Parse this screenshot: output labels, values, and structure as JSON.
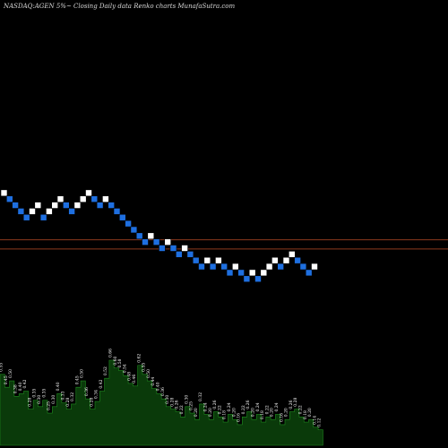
{
  "chart_data": {
    "type": "renko",
    "title": "NASDAQ:AGEN 5%~ Closing Daily data Renko charts MunafaSutra.com",
    "colors": {
      "background": "#000000",
      "up_brick": "#ffffff",
      "down_brick": "#1e6fe0",
      "reference_line": "#8b3a1e",
      "volume_bar": "#0a3a0a",
      "volume_outline": "#1e8a1e"
    },
    "reference_levels": [
      1,
      -0.5
    ],
    "bricks": [
      {
        "level": 9,
        "dir": "up"
      },
      {
        "level": 8,
        "dir": "down"
      },
      {
        "level": 7,
        "dir": "down"
      },
      {
        "level": 6,
        "dir": "down"
      },
      {
        "level": 5,
        "dir": "down"
      },
      {
        "level": 6,
        "dir": "up"
      },
      {
        "level": 7,
        "dir": "up"
      },
      {
        "level": 5,
        "dir": "down"
      },
      {
        "level": 6,
        "dir": "up"
      },
      {
        "level": 7,
        "dir": "up"
      },
      {
        "level": 8,
        "dir": "up"
      },
      {
        "level": 7,
        "dir": "down"
      },
      {
        "level": 6,
        "dir": "down"
      },
      {
        "level": 7,
        "dir": "up"
      },
      {
        "level": 8,
        "dir": "up"
      },
      {
        "level": 9,
        "dir": "up"
      },
      {
        "level": 8,
        "dir": "down"
      },
      {
        "level": 7,
        "dir": "down"
      },
      {
        "level": 8,
        "dir": "up"
      },
      {
        "level": 7,
        "dir": "down"
      },
      {
        "level": 6,
        "dir": "down"
      },
      {
        "level": 5,
        "dir": "down"
      },
      {
        "level": 4,
        "dir": "down"
      },
      {
        "level": 3,
        "dir": "down"
      },
      {
        "level": 2,
        "dir": "down"
      },
      {
        "level": 1,
        "dir": "down"
      },
      {
        "level": 2,
        "dir": "up"
      },
      {
        "level": 1,
        "dir": "down"
      },
      {
        "level": 0,
        "dir": "down"
      },
      {
        "level": 1,
        "dir": "up"
      },
      {
        "level": 0,
        "dir": "down"
      },
      {
        "level": -1,
        "dir": "down"
      },
      {
        "level": 0,
        "dir": "up"
      },
      {
        "level": -1,
        "dir": "down"
      },
      {
        "level": -2,
        "dir": "down"
      },
      {
        "level": -3,
        "dir": "down"
      },
      {
        "level": -2,
        "dir": "up"
      },
      {
        "level": -3,
        "dir": "down"
      },
      {
        "level": -2,
        "dir": "up"
      },
      {
        "level": -3,
        "dir": "down"
      },
      {
        "level": -4,
        "dir": "down"
      },
      {
        "level": -3,
        "dir": "up"
      },
      {
        "level": -4,
        "dir": "down"
      },
      {
        "level": -5,
        "dir": "down"
      },
      {
        "level": -4,
        "dir": "up"
      },
      {
        "level": -5,
        "dir": "down"
      },
      {
        "level": -4,
        "dir": "up"
      },
      {
        "level": -3,
        "dir": "up"
      },
      {
        "level": -2,
        "dir": "up"
      },
      {
        "level": -3,
        "dir": "down"
      },
      {
        "level": -2,
        "dir": "up"
      },
      {
        "level": -1,
        "dir": "up"
      },
      {
        "level": -2,
        "dir": "down"
      },
      {
        "level": -3,
        "dir": "down"
      },
      {
        "level": -4,
        "dir": "down"
      },
      {
        "level": -3,
        "dir": "up"
      }
    ],
    "volume": [
      {
        "v": 0.55,
        "label": "0.55"
      },
      {
        "v": 0.45,
        "label": "0.45"
      },
      {
        "v": 0.5,
        "label": "0.50"
      },
      {
        "v": 0.38,
        "label": "0.38"
      },
      {
        "v": 0.4,
        "label": "0.40"
      },
      {
        "v": 0.42,
        "label": "0.42"
      },
      {
        "v": 0.28,
        "label": "0.28"
      },
      {
        "v": 0.35,
        "label": "0.35"
      },
      {
        "v": 0.3,
        "label": "0.30"
      },
      {
        "v": 0.35,
        "label": "0.35"
      },
      {
        "v": 0.25,
        "label": "0.25"
      },
      {
        "v": 0.3,
        "label": "0.30"
      },
      {
        "v": 0.4,
        "label": "0.40"
      },
      {
        "v": 0.33,
        "label": "0.33"
      },
      {
        "v": 0.28,
        "label": "0.28"
      },
      {
        "v": 0.32,
        "label": "0.32"
      },
      {
        "v": 0.45,
        "label": "0.45"
      },
      {
        "v": 0.5,
        "label": "0.50"
      },
      {
        "v": 0.36,
        "label": "0.36"
      },
      {
        "v": 0.28,
        "label": "0.28"
      },
      {
        "v": 0.34,
        "label": "0.34"
      },
      {
        "v": 0.42,
        "label": "0.42"
      },
      {
        "v": 0.52,
        "label": "0.52"
      },
      {
        "v": 0.66,
        "label": "0.66"
      },
      {
        "v": 0.6,
        "label": "0.60"
      },
      {
        "v": 0.58,
        "label": "0.58"
      },
      {
        "v": 0.54,
        "label": "0.54"
      },
      {
        "v": 0.48,
        "label": "0.48"
      },
      {
        "v": 0.46,
        "label": "0.46"
      },
      {
        "v": 0.62,
        "label": "0.62"
      },
      {
        "v": 0.55,
        "label": "0.55"
      },
      {
        "v": 0.5,
        "label": "0.50"
      },
      {
        "v": 0.44,
        "label": "0.44"
      },
      {
        "v": 0.4,
        "label": "0.40"
      },
      {
        "v": 0.36,
        "label": "0.36"
      },
      {
        "v": 0.3,
        "label": "0.30"
      },
      {
        "v": 0.28,
        "label": "0.28"
      },
      {
        "v": 0.26,
        "label": "0.26"
      },
      {
        "v": 0.22,
        "label": "0.22"
      },
      {
        "v": 0.3,
        "label": "0.30"
      },
      {
        "v": 0.25,
        "label": "0.25"
      },
      {
        "v": 0.2,
        "label": "0.20"
      },
      {
        "v": 0.32,
        "label": "0.32"
      },
      {
        "v": 0.24,
        "label": "0.24"
      },
      {
        "v": 0.2,
        "label": "0.20"
      },
      {
        "v": 0.26,
        "label": "0.26"
      },
      {
        "v": 0.22,
        "label": "0.22"
      },
      {
        "v": 0.18,
        "label": "0.18"
      },
      {
        "v": 0.24,
        "label": "0.24"
      },
      {
        "v": 0.2,
        "label": "0.20"
      },
      {
        "v": 0.16,
        "label": "0.16"
      },
      {
        "v": 0.22,
        "label": "0.22"
      },
      {
        "v": 0.26,
        "label": "0.26"
      },
      {
        "v": 0.2,
        "label": "0.20"
      },
      {
        "v": 0.24,
        "label": "0.24"
      },
      {
        "v": 0.18,
        "label": "0.18"
      },
      {
        "v": 0.22,
        "label": "0.22"
      },
      {
        "v": 0.2,
        "label": "0.20"
      },
      {
        "v": 0.24,
        "label": "0.24"
      },
      {
        "v": 0.16,
        "label": "0.16"
      },
      {
        "v": 0.2,
        "label": "0.20"
      },
      {
        "v": 0.26,
        "label": "0.26"
      },
      {
        "v": 0.28,
        "label": "0.28"
      },
      {
        "v": 0.22,
        "label": "0.22"
      },
      {
        "v": 0.18,
        "label": "0.18"
      },
      {
        "v": 0.2,
        "label": "0.20"
      },
      {
        "v": 0.14,
        "label": "0.14"
      },
      {
        "v": 0.12,
        "label": "0.12"
      }
    ]
  }
}
